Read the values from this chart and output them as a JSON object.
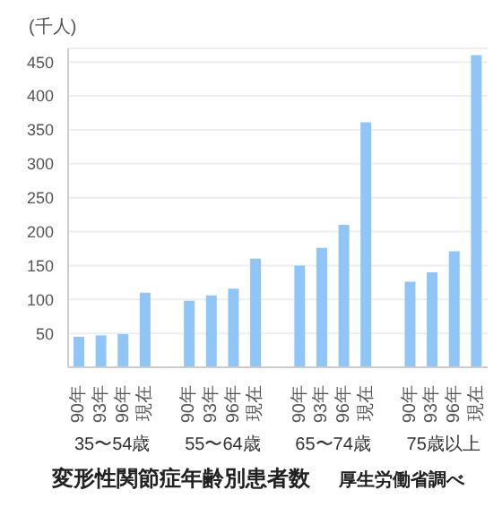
{
  "chart_data": {
    "type": "bar",
    "title": "変形性関節症年齢別患者数",
    "ylabel": "(千人)",
    "categories": [
      "90年",
      "93年",
      "96年",
      "現在",
      null,
      "90年",
      "93年",
      "96年",
      "現在",
      null,
      "90年",
      "93年",
      "96年",
      "現在",
      null,
      "90年",
      "93年",
      "96年",
      "現在"
    ],
    "values": [
      45,
      47,
      49,
      110,
      null,
      98,
      106,
      116,
      160,
      null,
      150,
      176,
      210,
      361,
      null,
      126,
      140,
      171,
      460
    ],
    "color": "#90c6f7",
    "ylim": [
      0,
      470
    ],
    "yticks": [
      50,
      100,
      150,
      200,
      250,
      300,
      350,
      400,
      450
    ],
    "grid": "y",
    "annotations": [
      "35〜54歳",
      "55〜64歳",
      "65〜74歳",
      "75歳以上",
      "厚生労働省調べ"
    ]
  }
}
